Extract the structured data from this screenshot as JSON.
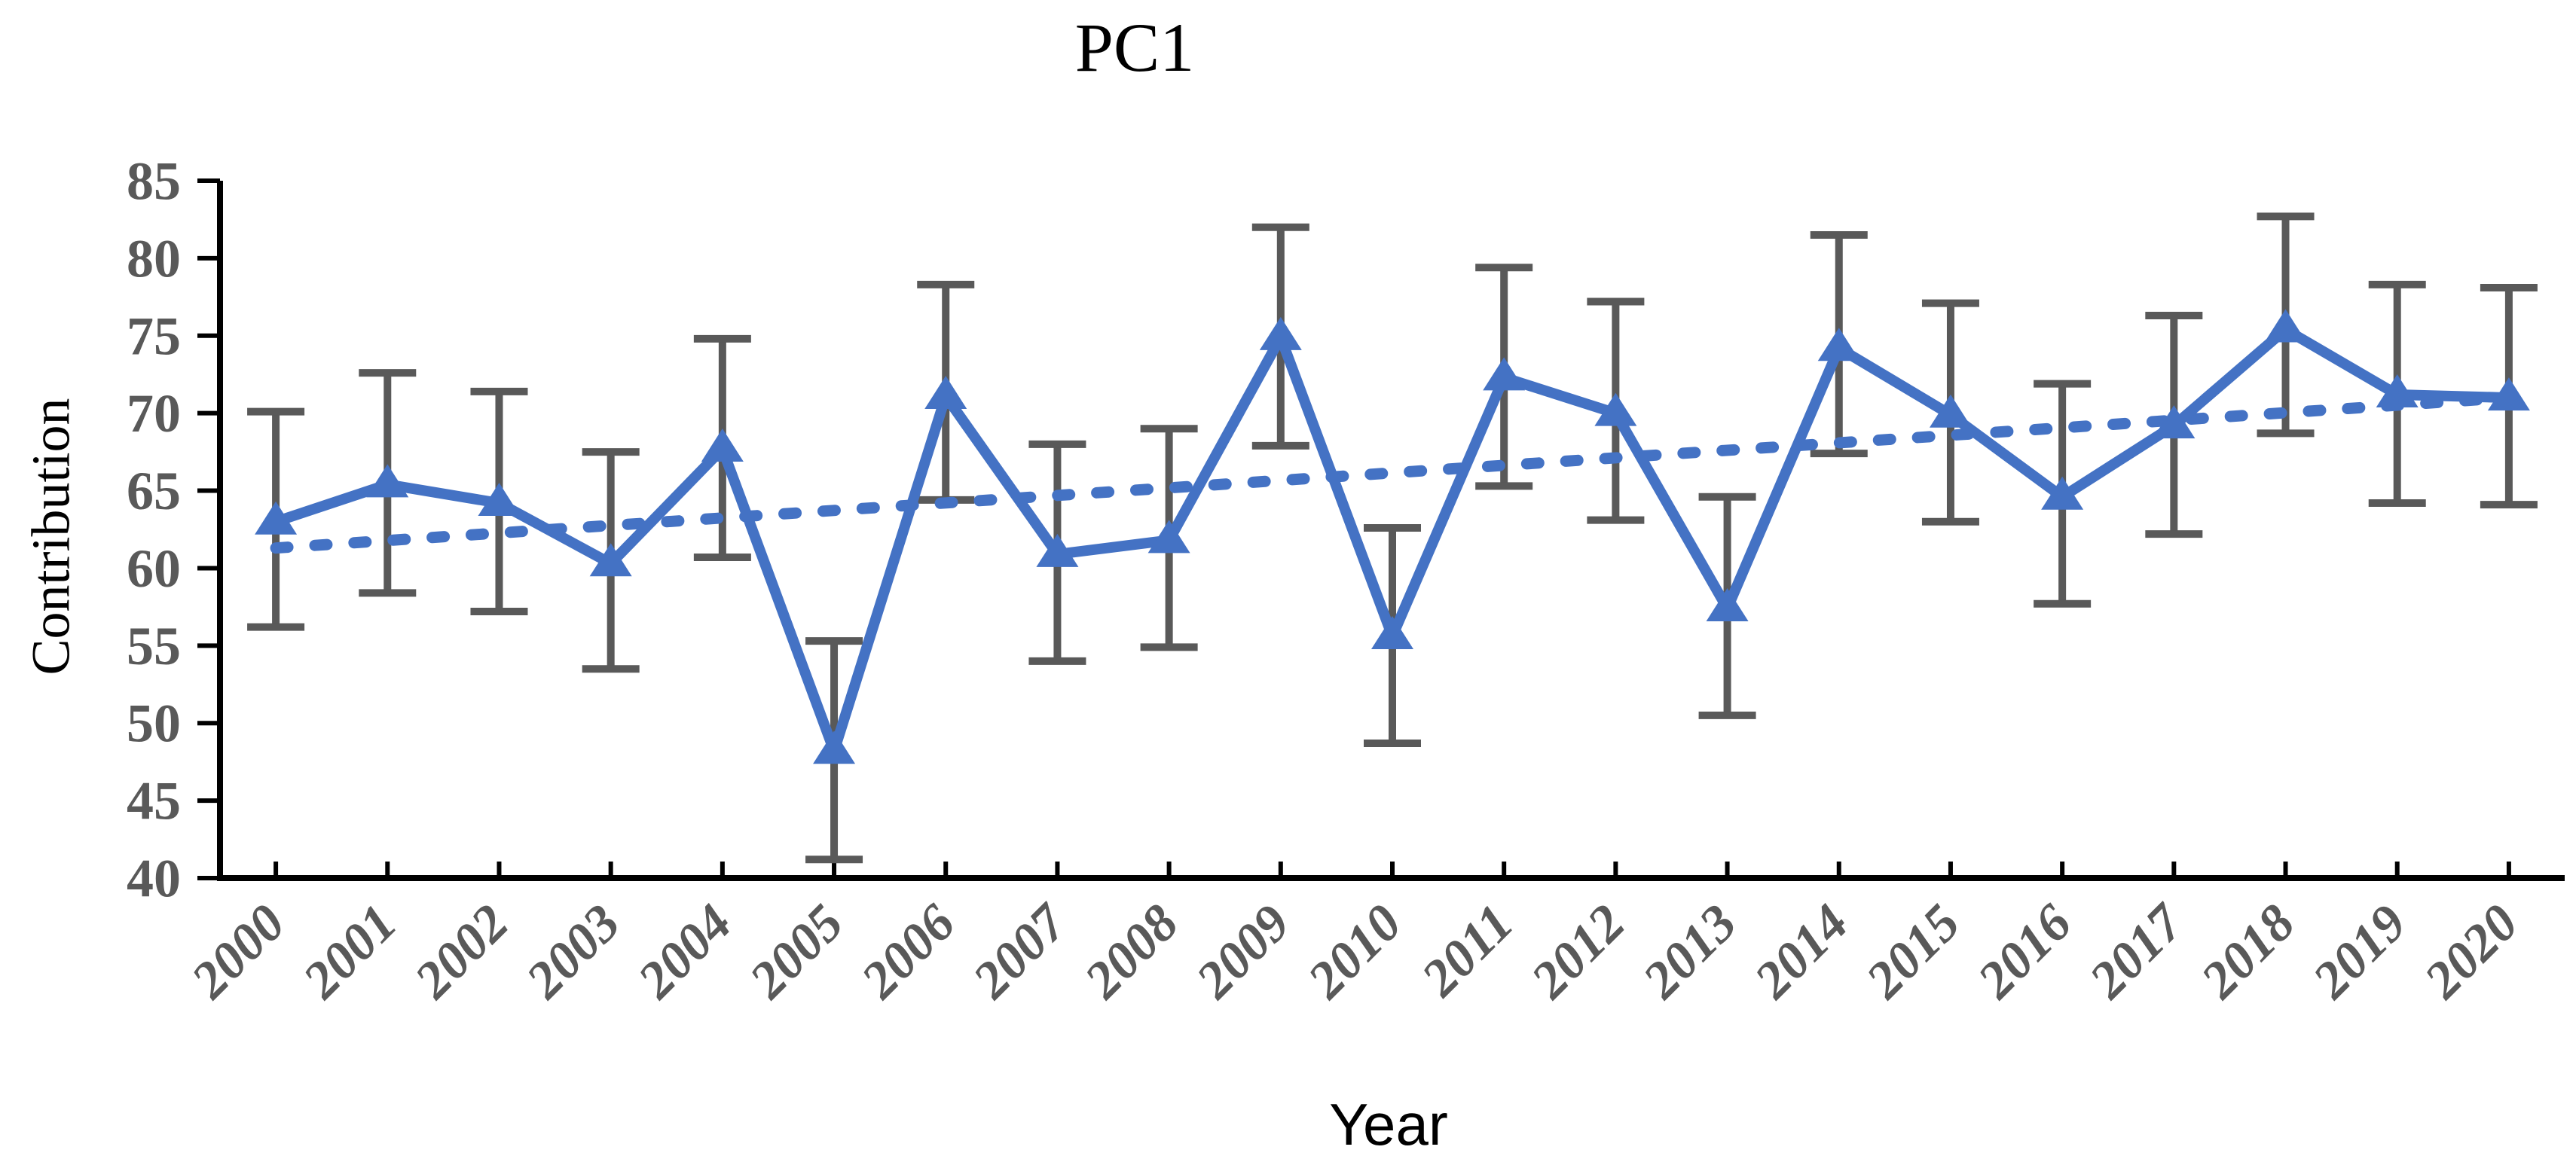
{
  "title": "PC1",
  "chart_data": {
    "type": "line",
    "title": "PC1",
    "xlabel": "Year",
    "ylabel": "Contribution",
    "ylim": [
      40,
      85
    ],
    "yticks": [
      85,
      80,
      75,
      70,
      65,
      60,
      55,
      50,
      45,
      40
    ],
    "grid": false,
    "legend_position": "none",
    "categories": [
      "2000",
      "2001",
      "2002",
      "2003",
      "2004",
      "2005",
      "2006",
      "2007",
      "2008",
      "2009",
      "2010",
      "2011",
      "2012",
      "2013",
      "2014",
      "2015",
      "2016",
      "2017",
      "2018",
      "2019",
      "2020"
    ],
    "series": [
      {
        "name": "Contribution",
        "marker": "triangle-up",
        "color": "#4472C4",
        "values": [
          63.0,
          65.4,
          64.2,
          60.3,
          67.7,
          48.2,
          71.1,
          60.9,
          61.8,
          74.9,
          55.6,
          72.3,
          70.0,
          57.4,
          74.2,
          69.9,
          64.6,
          69.2,
          75.4,
          71.2,
          71.0
        ],
        "error_upper": [
          70.1,
          72.6,
          71.4,
          67.5,
          74.8,
          55.3,
          78.3,
          68.0,
          69.0,
          82.0,
          62.6,
          79.4,
          77.2,
          64.6,
          81.5,
          77.1,
          71.9,
          76.3,
          82.7,
          78.3,
          78.1
        ],
        "error_lower": [
          56.2,
          58.4,
          57.2,
          53.5,
          60.7,
          41.2,
          64.4,
          54.0,
          54.9,
          67.9,
          48.7,
          65.3,
          63.1,
          50.5,
          67.4,
          63.0,
          57.7,
          62.2,
          68.7,
          64.2,
          64.1
        ]
      }
    ],
    "trendline": {
      "style": "dotted",
      "color": "#4472C4",
      "start_value": 61.3,
      "end_value": 71.0
    },
    "error_bar_color": "#595959",
    "tick_label_color": "#595959",
    "axis_color": "#000000"
  }
}
